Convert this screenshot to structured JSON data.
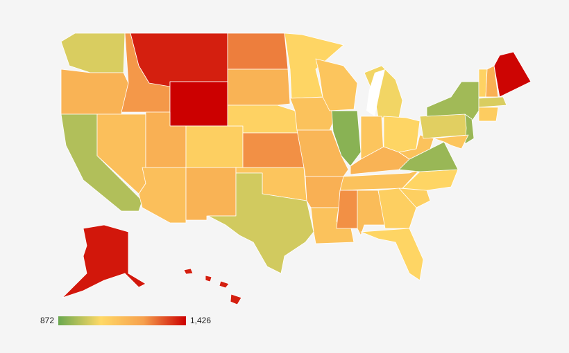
{
  "chart_data": {
    "type": "choropleth",
    "values": [
      1010,
      1180,
      960,
      1250,
      1140,
      1390,
      1426,
      1190,
      1090,
      1140,
      1180,
      1280,
      1180,
      1080,
      1260,
      1120,
      1000,
      1070,
      1130,
      1170,
      1190,
      1130,
      1120,
      910,
      1040,
      1120,
      1070,
      1180,
      1130,
      1260,
      1150,
      1090,
      1070,
      1090,
      1070,
      930,
      1130,
      1020,
      940,
      930,
      1120,
      1080,
      1190,
      1420,
      1010,
      1100,
      1400,
      1390
    ],
    "legend": {
      "min": 872,
      "max": {
        "value": 1426,
        "label": "1,426"
      }
    },
    "colors": [
      "#6aa84f",
      "#ffd966",
      "#f6a04d",
      "#cc0000"
    ]
  }
}
